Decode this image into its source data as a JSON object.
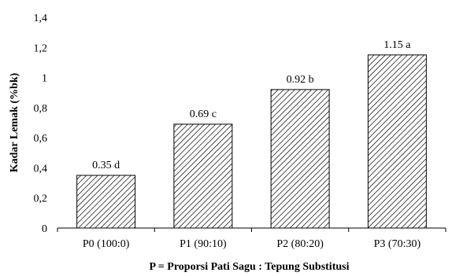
{
  "chart_data": {
    "type": "bar",
    "categories": [
      "P0 (100:0)",
      "P1 (90:10)",
      "P2 (80:20)",
      "P3 (70:30)"
    ],
    "values": [
      0.35,
      0.69,
      0.92,
      1.15
    ],
    "data_labels": [
      "0.35 d",
      "0.69 c",
      "0.92 b",
      "1.15 a"
    ],
    "title": "",
    "xlabel": "P = Proporsi Pati Sagu : Tepung Substitusi",
    "ylabel": "Kadar Lemak (%bk)",
    "ylim": [
      0,
      1.4
    ],
    "yticks": [
      0,
      0.2,
      0.4,
      0.6,
      0.8,
      1.0,
      1.2,
      1.4
    ],
    "ytick_labels": [
      "0",
      "0,2",
      "0,4",
      "0,6",
      "0,8",
      "1",
      "1,2",
      "1,4"
    ],
    "bar_fill": "diagonal-hatch",
    "bar_color": "#000000",
    "grid": false,
    "legend": "none"
  }
}
